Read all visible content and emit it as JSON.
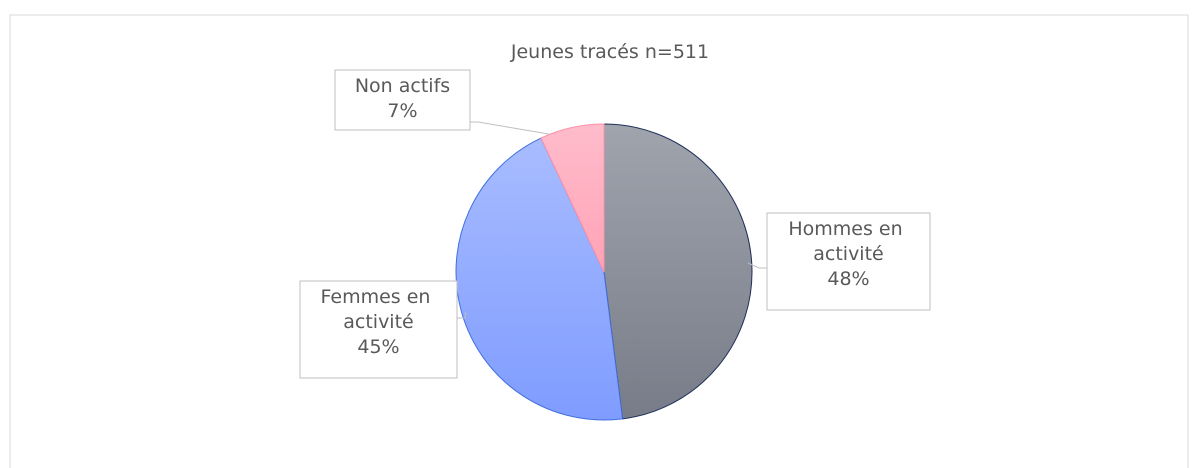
{
  "chart_data": {
    "type": "pie",
    "title": "Jeunes tracés n=511",
    "categories": [
      "Hommes en activité",
      "Femmes en activité",
      "Non actifs"
    ],
    "values": [
      48,
      45,
      7
    ],
    "value_labels": [
      "48%",
      "45%",
      "7%"
    ],
    "colors": [
      "#8a8f9b",
      "#92acff",
      "#ffb0c0"
    ]
  }
}
